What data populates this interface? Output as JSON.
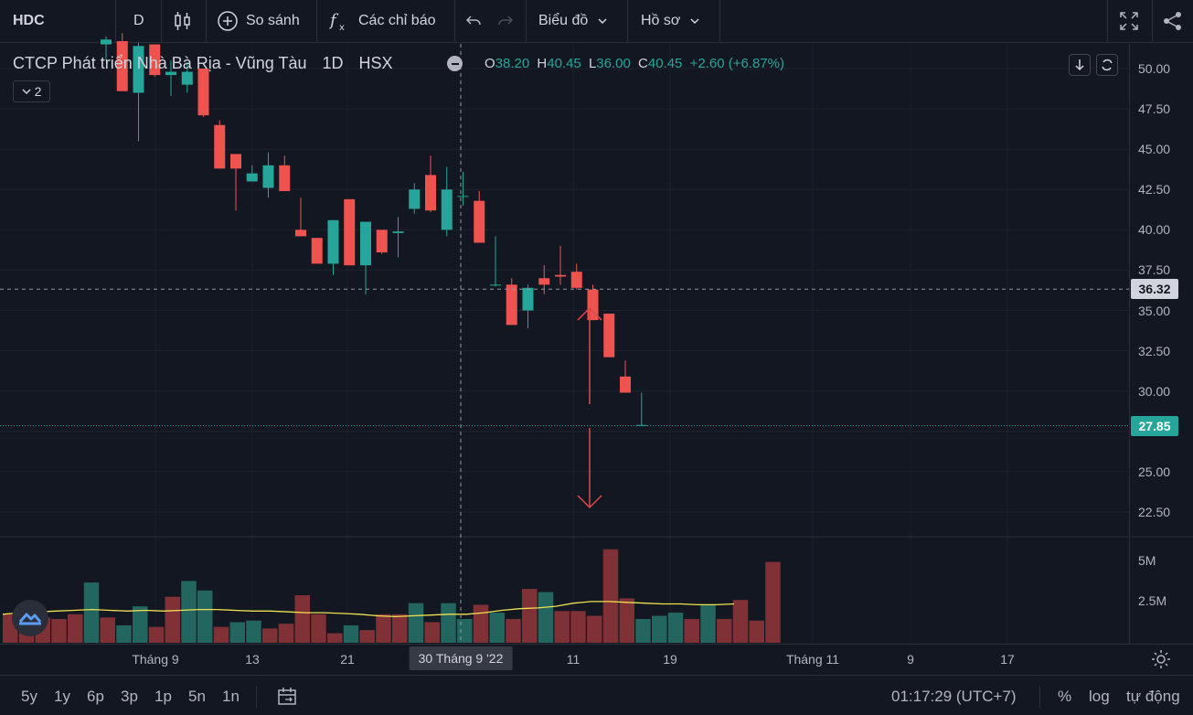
{
  "toolbar": {
    "symbol": "HDC",
    "interval": "D",
    "compare_label": "So sánh",
    "indicators_label": "Các chỉ báo",
    "chart_menu_label": "Biểu đồ",
    "profile_menu_label": "Hồ sơ"
  },
  "legend": {
    "title": "CTCP Phát triển Nhà Bà Rịa - Vũng Tàu",
    "interval": "1D",
    "exchange": "HSX",
    "open_key": "O",
    "open": "38.20",
    "high_key": "H",
    "high": "40.45",
    "low_key": "L",
    "low": "36.00",
    "close_key": "C",
    "close": "40.45",
    "change": "+2.60 (+6.87%)",
    "indicator_count": "2"
  },
  "price_axis": {
    "labels": [
      "50.00",
      "47.50",
      "45.00",
      "42.50",
      "40.00",
      "37.50",
      "35.00",
      "32.50",
      "30.00",
      "27.50",
      "25.00",
      "22.50"
    ],
    "crosshair_price": "36.32",
    "last_price": "27.85",
    "volume_labels": [
      "5M",
      "2.5M"
    ]
  },
  "time_axis": {
    "labels": [
      "Tháng 9",
      "13",
      "21",
      "11",
      "19",
      "Tháng 11",
      "9",
      "17"
    ],
    "crosshair_date": "30 Tháng 9 '22"
  },
  "bottom_bar": {
    "ranges": [
      "5y",
      "1y",
      "6p",
      "3p",
      "1p",
      "5n",
      "1n"
    ],
    "clock": "01:17:29 (UTC+7)",
    "percent_label": "%",
    "log_label": "log",
    "auto_label": "tự động"
  },
  "colors": {
    "up": "#26a69a",
    "down": "#ef5350",
    "background": "#131722",
    "grid": "#1e222d",
    "ma_line": "#f0e153",
    "arrow": "#e04848",
    "crosshair_tag": "#d1d4dc",
    "last_price_tag": "#26a69a"
  },
  "chart_data": {
    "type": "candlestick",
    "symbol": "HDC",
    "ylim": [
      21,
      53
    ],
    "candles": [
      {
        "o": 51.5,
        "h": 52.0,
        "l": 50.5,
        "c": 51.8
      },
      {
        "o": 51.7,
        "h": 52.2,
        "l": 48.6,
        "c": 48.6
      },
      {
        "o": 48.5,
        "h": 51.6,
        "l": 45.5,
        "c": 51.4
      },
      {
        "o": 51.5,
        "h": 51.5,
        "l": 49.5,
        "c": 49.6
      },
      {
        "o": 49.6,
        "h": 50.5,
        "l": 48.3,
        "c": 49.8
      },
      {
        "o": 49.0,
        "h": 50.4,
        "l": 48.5,
        "c": 49.8
      },
      {
        "o": 50.0,
        "h": 50.0,
        "l": 47.0,
        "c": 47.1
      },
      {
        "o": 46.5,
        "h": 46.8,
        "l": 43.8,
        "c": 43.8
      },
      {
        "o": 44.7,
        "h": 44.7,
        "l": 41.2,
        "c": 43.8
      },
      {
        "o": 43.0,
        "h": 44.0,
        "l": 43.0,
        "c": 43.5
      },
      {
        "o": 42.6,
        "h": 44.8,
        "l": 42.0,
        "c": 44.0
      },
      {
        "o": 44.0,
        "h": 44.6,
        "l": 42.4,
        "c": 42.4
      },
      {
        "o": 40.0,
        "h": 42.0,
        "l": 39.6,
        "c": 39.6
      },
      {
        "o": 39.5,
        "h": 39.5,
        "l": 37.9,
        "c": 37.9
      },
      {
        "o": 37.9,
        "h": 40.6,
        "l": 37.2,
        "c": 40.6
      },
      {
        "o": 41.9,
        "h": 41.9,
        "l": 37.8,
        "c": 37.8
      },
      {
        "o": 37.8,
        "h": 40.5,
        "l": 36.0,
        "c": 40.5
      },
      {
        "o": 40.0,
        "h": 40.0,
        "l": 38.5,
        "c": 38.6
      },
      {
        "o": 39.8,
        "h": 40.8,
        "l": 38.3,
        "c": 39.9
      },
      {
        "o": 41.3,
        "h": 42.9,
        "l": 41.0,
        "c": 42.5
      },
      {
        "o": 43.4,
        "h": 44.6,
        "l": 41.1,
        "c": 41.2
      },
      {
        "o": 40.0,
        "h": 43.9,
        "l": 39.6,
        "c": 42.5
      },
      {
        "o": 42.1,
        "h": 43.6,
        "l": 41.5,
        "c": 42.1
      },
      {
        "o": 41.8,
        "h": 42.4,
        "l": 39.2,
        "c": 39.2
      },
      {
        "o": 36.6,
        "h": 39.6,
        "l": 36.5,
        "c": 36.6
      },
      {
        "o": 36.6,
        "h": 37.0,
        "l": 34.1,
        "c": 34.1
      },
      {
        "o": 35.0,
        "h": 36.6,
        "l": 33.9,
        "c": 36.4
      },
      {
        "o": 37.0,
        "h": 37.8,
        "l": 36.0,
        "c": 36.6
      },
      {
        "o": 37.2,
        "h": 39.0,
        "l": 36.6,
        "c": 37.1
      },
      {
        "o": 37.4,
        "h": 37.9,
        "l": 36.3,
        "c": 36.4
      },
      {
        "o": 36.3,
        "h": 36.6,
        "l": 34.4,
        "c": 34.4
      },
      {
        "o": 34.8,
        "h": 34.8,
        "l": 32.1,
        "c": 32.1
      },
      {
        "o": 30.9,
        "h": 31.9,
        "l": 29.9,
        "c": 29.9
      },
      {
        "o": 27.85,
        "h": 29.9,
        "l": 27.85,
        "c": 27.9
      }
    ],
    "volume": {
      "ylim": [
        0,
        6.8
      ],
      "values": [
        1.8,
        1.5,
        1.6,
        1.5,
        1.8,
        3.8,
        1.6,
        1.1,
        2.3,
        1.0,
        2.9,
        3.9,
        3.3,
        1.0,
        1.3,
        1.4,
        0.9,
        1.2,
        3.0,
        1.8,
        0.6,
        1.1,
        0.8,
        1.8,
        1.8,
        2.5,
        1.3,
        2.5,
        1.5,
        2.4,
        1.9,
        1.5,
        3.4,
        3.2,
        2.0,
        2.0,
        1.7,
        5.9,
        2.8,
        1.5,
        1.7,
        1.9,
        1.5,
        2.4,
        1.5,
        2.7,
        1.4,
        5.1
      ],
      "directions": [
        "down",
        "down",
        "down",
        "down",
        "down",
        "up",
        "down",
        "up",
        "up",
        "down",
        "down",
        "up",
        "up",
        "down",
        "up",
        "up",
        "down",
        "down",
        "down",
        "down",
        "down",
        "up",
        "down",
        "down",
        "down",
        "up",
        "down",
        "up",
        "up",
        "down",
        "up",
        "down",
        "down",
        "up",
        "down",
        "down",
        "down",
        "down",
        "down",
        "up",
        "up",
        "up",
        "down",
        "up",
        "down",
        "down",
        "down",
        "down"
      ],
      "ma": [
        1.8,
        1.9,
        1.95,
        2.0,
        2.05,
        2.1,
        2.05,
        2.0,
        2.05,
        2.0,
        2.05,
        2.1,
        2.1,
        2.05,
        2.0,
        2.0,
        1.95,
        1.9,
        1.9,
        1.85,
        1.8,
        1.7,
        1.65,
        1.7,
        1.75,
        1.8,
        1.8,
        1.9,
        2.05,
        2.15,
        2.2,
        2.3,
        2.5,
        2.6,
        2.6,
        2.55,
        2.5,
        2.45,
        2.45,
        2.4,
        2.4,
        2.45
      ]
    },
    "annotations": [
      "arrow-up",
      "arrow-down"
    ]
  }
}
